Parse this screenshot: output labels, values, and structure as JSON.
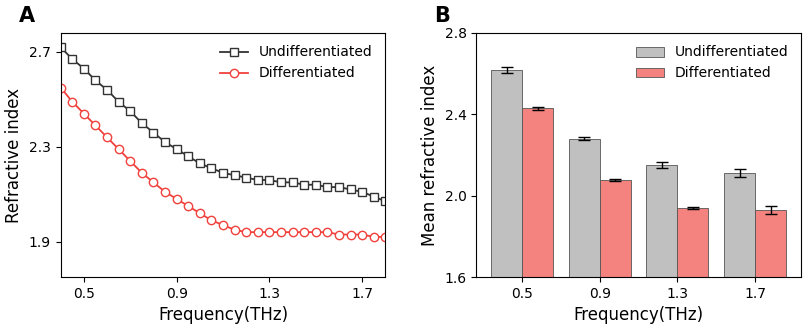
{
  "chart_data": [
    {
      "type": "line",
      "title": "A",
      "x_label": "Frequency(THz)",
      "y_label": "Refractive index",
      "x": [
        0.4,
        0.45,
        0.5,
        0.55,
        0.6,
        0.65,
        0.7,
        0.75,
        0.8,
        0.85,
        0.9,
        0.95,
        1.0,
        1.05,
        1.1,
        1.15,
        1.2,
        1.25,
        1.3,
        1.35,
        1.4,
        1.45,
        1.5,
        1.55,
        1.6,
        1.65,
        1.7,
        1.75,
        1.8
      ],
      "series": [
        {
          "name": "Undifferentiated",
          "color": "#333333",
          "marker": "square",
          "values": [
            2.72,
            2.67,
            2.63,
            2.58,
            2.54,
            2.49,
            2.45,
            2.4,
            2.36,
            2.32,
            2.29,
            2.26,
            2.23,
            2.21,
            2.19,
            2.18,
            2.17,
            2.16,
            2.16,
            2.15,
            2.15,
            2.14,
            2.14,
            2.13,
            2.13,
            2.12,
            2.11,
            2.09,
            2.07
          ]
        },
        {
          "name": "Differentiated",
          "color": "#f0413c",
          "marker": "circle",
          "values": [
            2.55,
            2.49,
            2.44,
            2.39,
            2.34,
            2.29,
            2.24,
            2.19,
            2.15,
            2.11,
            2.08,
            2.05,
            2.02,
            1.99,
            1.97,
            1.95,
            1.94,
            1.94,
            1.94,
            1.94,
            1.94,
            1.94,
            1.94,
            1.94,
            1.93,
            1.93,
            1.93,
            1.92,
            1.92
          ]
        }
      ],
      "xlim": [
        0.4,
        1.8
      ],
      "xticks": [
        0.5,
        0.9,
        1.3,
        1.7
      ],
      "ylim": [
        1.75,
        2.78
      ],
      "yticks": [
        1.9,
        2.3,
        2.7
      ],
      "legend": "upper right"
    },
    {
      "type": "bar",
      "title": "B",
      "x_label": "Frequency(THz)",
      "y_label": "Mean refractive index",
      "categories": [
        "0.5",
        "0.9",
        "1.3",
        "1.7"
      ],
      "series": [
        {
          "name": "Undifferentiated",
          "color": "#c0c0c0",
          "values": [
            2.62,
            2.28,
            2.15,
            2.11
          ],
          "errors": [
            0.015,
            0.007,
            0.015,
            0.02
          ]
        },
        {
          "name": "Differentiated",
          "color": "#f4827e",
          "values": [
            2.43,
            2.08,
            1.94,
            1.93
          ],
          "errors": [
            0.007,
            0.005,
            0.006,
            0.02
          ]
        }
      ],
      "ylim": [
        1.6,
        2.8
      ],
      "yticks": [
        1.6,
        2.0,
        2.4,
        2.8
      ],
      "legend": "upper right"
    }
  ]
}
